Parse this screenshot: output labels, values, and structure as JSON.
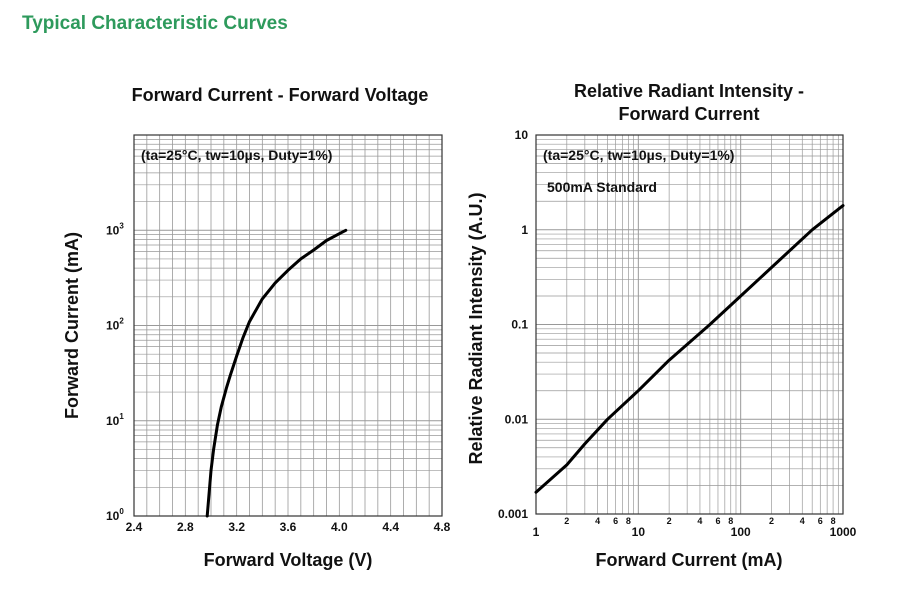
{
  "heading": "Typical Characteristic Curves",
  "colors": {
    "heading": "#2e9a5c",
    "curve": "#000000",
    "grid": "#999999",
    "frame": "#333333"
  },
  "chart_data": [
    {
      "type": "line",
      "title": "Forward Current - Forward Voltage",
      "xlabel": "Forward Voltage (V)",
      "ylabel": "Forward Current (mA)",
      "annotation": "(ta=25°C, tw=10µs, Duty=1%)",
      "x_scale": "linear",
      "y_scale": "log",
      "xlim": [
        2.4,
        4.8
      ],
      "ylim": [
        1,
        10000
      ],
      "grid": true,
      "x_ticks": [
        "2.4",
        "2.8",
        "3.2",
        "3.6",
        "4.0",
        "4.4",
        "4.8"
      ],
      "y_ticks": [
        {
          "base": "10",
          "exp": "0"
        },
        {
          "base": "10",
          "exp": "1"
        },
        {
          "base": "10",
          "exp": "2"
        },
        {
          "base": "10",
          "exp": "3"
        }
      ],
      "series": [
        {
          "x": [
            2.97,
            3.0,
            3.02,
            3.05,
            3.08,
            3.12,
            3.15,
            3.2,
            3.25,
            3.3,
            3.4,
            3.5,
            3.6,
            3.7,
            3.8,
            3.9,
            4.0,
            4.05
          ],
          "y": [
            1,
            3,
            5,
            9,
            14,
            22,
            30,
            48,
            75,
            110,
            190,
            280,
            380,
            500,
            620,
            780,
            920,
            1000
          ]
        }
      ]
    },
    {
      "type": "line",
      "title": [
        "Relative Radiant Intensity -",
        "Forward Current"
      ],
      "xlabel": "Forward Current (mA)",
      "ylabel": "Relative Radiant Intensity (A.U.)",
      "annotations": [
        "(ta=25°C, tw=10µs, Duty=1%)",
        "500mA Standard"
      ],
      "x_scale": "log",
      "y_scale": "log",
      "xlim": [
        1,
        1000
      ],
      "ylim": [
        0.001,
        10
      ],
      "grid": true,
      "x_ticks": [
        "1",
        "10",
        "100",
        "1000"
      ],
      "x_minor_labels": [
        "2",
        "4",
        "6",
        "8"
      ],
      "y_ticks": [
        "0.001",
        "0.01",
        "0.1",
        "1",
        "10"
      ],
      "series": [
        {
          "x": [
            1,
            2,
            3,
            5,
            10,
            20,
            50,
            100,
            200,
            500,
            1000
          ],
          "y": [
            0.0017,
            0.0033,
            0.0055,
            0.01,
            0.02,
            0.042,
            0.1,
            0.2,
            0.4,
            1.0,
            1.8
          ]
        }
      ]
    }
  ]
}
